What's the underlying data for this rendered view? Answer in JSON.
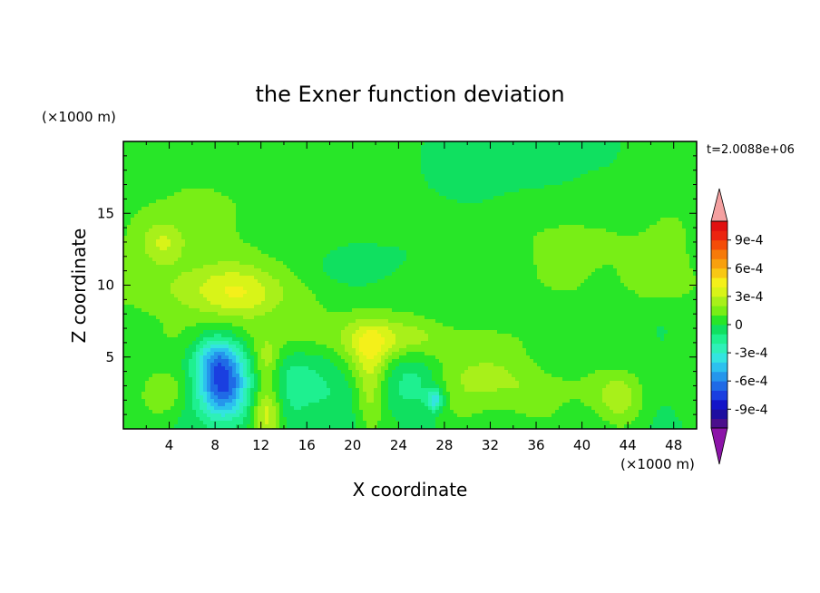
{
  "chart_data": {
    "type": "heatmap",
    "title": "the Exner function deviation",
    "xlabel": "X coordinate",
    "ylabel": "Z coordinate",
    "x_unit": "(×1000 m)",
    "y_unit": "(×1000 m)",
    "time_label": "t=2.0088e+06",
    "xlim": [
      0,
      50
    ],
    "ylim": [
      0,
      20
    ],
    "x_ticks": [
      4,
      8,
      12,
      16,
      20,
      24,
      28,
      32,
      36,
      40,
      44,
      48
    ],
    "y_ticks": [
      5,
      10,
      15
    ],
    "colorbar": {
      "levels": [
        -0.0011,
        -0.001,
        -0.0009,
        -0.0008,
        -0.0007,
        -0.0006,
        -0.0005,
        -0.0004,
        -0.0003,
        -0.0002,
        -0.0001,
        0,
        0.0001,
        0.0002,
        0.0003,
        0.0004,
        0.0005,
        0.0006,
        0.0007,
        0.0008,
        0.0009,
        0.001,
        0.0011
      ],
      "tick_values": [
        -0.0009,
        -0.0006,
        -0.0003,
        0,
        0.0003,
        0.0006,
        0.0009
      ],
      "tick_labels": [
        "-9e-4",
        "-6e-4",
        "-3e-4",
        "0",
        "3e-4",
        "6e-4",
        "9e-4"
      ],
      "colors": [
        "#4b0f8c",
        "#1e0ea0",
        "#1414c8",
        "#1a3fe0",
        "#1f6ae6",
        "#2596ec",
        "#2cc1ee",
        "#33e4e0",
        "#2ef0b8",
        "#1ef090",
        "#10e060",
        "#28e628",
        "#78ee16",
        "#a8f01a",
        "#d8f418",
        "#f4f01a",
        "#f8c814",
        "#f8a00e",
        "#f67a0a",
        "#f44c08",
        "#ec2410",
        "#e01010"
      ],
      "under_color": "#8c14a8",
      "over_color": "#f4a0a0"
    },
    "blobs": [
      {
        "x": 25,
        "y": 9.6,
        "sx": 40,
        "sy": 1.3,
        "a": 0.6
      },
      {
        "x": 25,
        "y": 6.2,
        "sx": 40,
        "sy": 0.8,
        "a": 0.5
      },
      {
        "x": 8.6,
        "y": 3.1,
        "sx": 1.5,
        "sy": 1.7,
        "a": -7.5
      },
      {
        "x": 8.0,
        "y": 5.2,
        "sx": 1.4,
        "sy": 1.0,
        "a": -2.5
      },
      {
        "x": 27.2,
        "y": 2.0,
        "sx": 0.5,
        "sy": 0.5,
        "a": -4.0
      },
      {
        "x": 25.5,
        "y": 3.2,
        "sx": 1.8,
        "sy": 1.3,
        "a": -1.6
      },
      {
        "x": 14.5,
        "y": 2.8,
        "sx": 1.5,
        "sy": 2.0,
        "a": -1.5
      },
      {
        "x": 18.0,
        "y": 3.5,
        "sx": 2.5,
        "sy": 2.0,
        "a": -0.8
      },
      {
        "x": 20.0,
        "y": 11.0,
        "sx": 3.0,
        "sy": 1.2,
        "a": -1.0
      },
      {
        "x": 3.5,
        "y": 2.5,
        "sx": 1.3,
        "sy": 1.2,
        "a": 2.0
      },
      {
        "x": 12.5,
        "y": 1.0,
        "sx": 0.9,
        "sy": 1.6,
        "a": 4.0
      },
      {
        "x": 12.5,
        "y": 4.8,
        "sx": 0.8,
        "sy": 1.0,
        "a": 2.0
      },
      {
        "x": 21.5,
        "y": 5.5,
        "sx": 1.5,
        "sy": 1.5,
        "a": 3.0
      },
      {
        "x": 21.5,
        "y": 2.5,
        "sx": 0.8,
        "sy": 2.0,
        "a": 2.0
      },
      {
        "x": 31.0,
        "y": 3.5,
        "sx": 3.0,
        "sy": 1.8,
        "a": 2.4
      },
      {
        "x": 24.0,
        "y": 6.5,
        "sx": 3.0,
        "sy": 1.0,
        "a": 1.8
      },
      {
        "x": 38.0,
        "y": 2.5,
        "sx": 3.0,
        "sy": 1.5,
        "a": 1.3
      },
      {
        "x": 43.5,
        "y": 2.3,
        "sx": 1.6,
        "sy": 1.3,
        "a": 2.3
      },
      {
        "x": 9.8,
        "y": 9.5,
        "sx": 3.0,
        "sy": 1.4,
        "a": 3.0
      },
      {
        "x": 3.5,
        "y": 13.0,
        "sx": 1.3,
        "sy": 1.0,
        "a": 2.0
      },
      {
        "x": 39.0,
        "y": 13.0,
        "sx": 5.0,
        "sy": 2.2,
        "a": 1.2
      },
      {
        "x": 3.0,
        "y": 12.5,
        "sx": 5.0,
        "sy": 5.0,
        "a": 1.0
      },
      {
        "x": 13.0,
        "y": 16.0,
        "sx": 6.0,
        "sy": 4.0,
        "a": 0.8
      },
      {
        "x": 48.0,
        "y": 13.0,
        "sx": 2.5,
        "sy": 4.0,
        "a": 0.9
      },
      {
        "x": 34.0,
        "y": 18.0,
        "sx": 5.0,
        "sy": 2.0,
        "a": -0.3
      },
      {
        "x": 47.0,
        "y": 6.5,
        "sx": 1.2,
        "sy": 1.2,
        "a": -0.8
      },
      {
        "x": 16.0,
        "y": 6.5,
        "sx": 3.0,
        "sy": 1.5,
        "a": 1.0
      }
    ]
  }
}
